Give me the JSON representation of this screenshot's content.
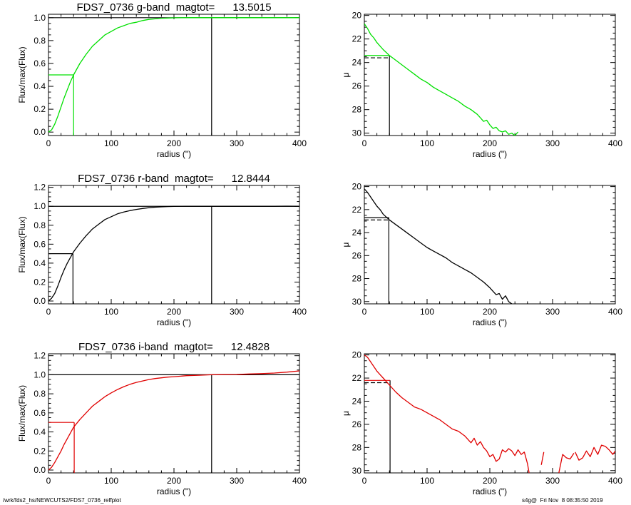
{
  "footer": {
    "left": "/wrk/fds2_hs/NEWCUTS2/FDS7_0736_reffplot",
    "right": "s4g@  Fri Nov  8 08:35:50 2019"
  },
  "chart_data": [
    {
      "type": "line",
      "band": "g",
      "title": "FDS7_0736 g-band  magtot=      13.5015",
      "xlabel": "radius (\")",
      "ylabel": "Flux/max(Flux)",
      "xlim": [
        0,
        400
      ],
      "ylim": [
        -0.03,
        1.03
      ],
      "xticks": [
        0,
        100,
        200,
        300,
        400
      ],
      "yticks": [
        0.0,
        0.2,
        0.4,
        0.6,
        0.8,
        1.0
      ],
      "color": "#00e000",
      "series": [
        {
          "x": [
            0,
            5,
            10,
            15,
            20,
            25,
            30,
            35,
            40,
            50,
            60,
            70,
            80,
            90,
            100,
            110,
            120,
            130,
            140,
            150,
            160,
            170,
            180,
            190,
            200,
            220,
            240,
            260,
            280,
            300,
            320,
            340,
            360,
            380,
            400
          ],
          "values": [
            0.0,
            0.02,
            0.07,
            0.14,
            0.22,
            0.3,
            0.37,
            0.44,
            0.5,
            0.6,
            0.68,
            0.75,
            0.8,
            0.85,
            0.88,
            0.91,
            0.93,
            0.95,
            0.96,
            0.975,
            0.985,
            0.99,
            0.995,
            0.997,
            0.999,
            1.0,
            1.0,
            1.0,
            1.0,
            1.0,
            1.0,
            1.0,
            1.0,
            1.0,
            1.0
          ]
        }
      ],
      "half_light_radius": 40,
      "half_level": 0.5,
      "total_radius": 260,
      "total_level": 1.0
    },
    {
      "type": "line",
      "band": "g",
      "title": "",
      "xlabel": "radius (\")",
      "ylabel": "μ",
      "xlim": [
        0,
        400
      ],
      "ylim": [
        30.2,
        19.9
      ],
      "xticks": [
        0,
        100,
        200,
        300,
        400
      ],
      "yticks": [
        20,
        22,
        24,
        26,
        28,
        30
      ],
      "color": "#00e000",
      "series": [
        {
          "x": [
            0,
            5,
            10,
            15,
            20,
            25,
            30,
            40,
            50,
            60,
            70,
            80,
            90,
            100,
            110,
            120,
            130,
            140,
            150,
            160,
            170,
            180,
            185,
            190,
            195,
            200,
            205,
            210,
            215,
            220,
            225,
            230,
            235,
            240,
            245
          ],
          "values": [
            20.7,
            21.1,
            21.6,
            21.9,
            22.3,
            22.6,
            22.9,
            23.4,
            23.8,
            24.2,
            24.6,
            25.0,
            25.4,
            25.7,
            26.1,
            26.4,
            26.7,
            27.0,
            27.3,
            27.7,
            28.0,
            28.4,
            28.7,
            29.0,
            28.9,
            29.3,
            29.6,
            29.5,
            29.8,
            29.9,
            29.8,
            30.1,
            30.0,
            30.2,
            29.9
          ]
        }
      ],
      "half_light_radius": 40,
      "mu_markers": [
        23.4,
        23.6
      ]
    },
    {
      "type": "line",
      "band": "r",
      "title": "FDS7_0736 r-band  magtot=      12.8444",
      "xlabel": "radius (\")",
      "ylabel": "Flux/max(Flux)",
      "xlim": [
        0,
        400
      ],
      "ylim": [
        -0.03,
        1.22
      ],
      "xticks": [
        0,
        100,
        200,
        300,
        400
      ],
      "yticks": [
        0.0,
        0.2,
        0.4,
        0.6,
        0.8,
        1.0,
        1.2
      ],
      "color": "#000000",
      "series": [
        {
          "x": [
            0,
            5,
            10,
            15,
            20,
            25,
            30,
            35,
            40,
            50,
            60,
            70,
            80,
            90,
            100,
            110,
            120,
            130,
            140,
            150,
            160,
            170,
            180,
            190,
            200,
            220,
            240,
            260,
            280,
            300,
            320,
            340,
            360,
            380,
            400
          ],
          "values": [
            0.0,
            0.03,
            0.08,
            0.16,
            0.25,
            0.33,
            0.4,
            0.46,
            0.52,
            0.61,
            0.69,
            0.76,
            0.81,
            0.86,
            0.89,
            0.92,
            0.94,
            0.955,
            0.967,
            0.977,
            0.985,
            0.99,
            0.994,
            0.997,
            0.999,
            1.0,
            1.0,
            1.0,
            1.0,
            1.0,
            1.0,
            1.0,
            1.0,
            1.002,
            1.0
          ]
        }
      ],
      "half_light_radius": 39,
      "half_level": 0.5,
      "total_radius": 260,
      "total_level": 1.0
    },
    {
      "type": "line",
      "band": "r",
      "title": "",
      "xlabel": "radius (\")",
      "ylabel": "μ",
      "xlim": [
        0,
        400
      ],
      "ylim": [
        30.2,
        19.9
      ],
      "xticks": [
        0,
        100,
        200,
        300,
        400
      ],
      "yticks": [
        20,
        22,
        24,
        26,
        28,
        30
      ],
      "color": "#000000",
      "series": [
        {
          "x": [
            0,
            5,
            10,
            15,
            20,
            25,
            30,
            40,
            50,
            60,
            70,
            80,
            90,
            100,
            110,
            120,
            130,
            140,
            150,
            160,
            170,
            180,
            190,
            200,
            205,
            210,
            215,
            220,
            225,
            230,
            235
          ],
          "values": [
            20.2,
            20.5,
            20.9,
            21.3,
            21.7,
            22.0,
            22.4,
            22.9,
            23.3,
            23.7,
            24.1,
            24.5,
            24.9,
            25.3,
            25.6,
            25.9,
            26.2,
            26.6,
            26.9,
            27.2,
            27.5,
            27.9,
            28.3,
            28.8,
            29.1,
            29.4,
            29.3,
            29.8,
            29.5,
            30.0,
            30.2
          ]
        }
      ],
      "half_light_radius": 39,
      "mu_markers": [
        22.7,
        22.9
      ]
    },
    {
      "type": "line",
      "band": "i",
      "title": "FDS7_0736 i-band  magtot=      12.4828",
      "xlabel": "radius (\")",
      "ylabel": "Flux/max(Flux)",
      "xlim": [
        0,
        400
      ],
      "ylim": [
        -0.03,
        1.22
      ],
      "xticks": [
        0,
        100,
        200,
        300,
        400
      ],
      "yticks": [
        0.0,
        0.2,
        0.4,
        0.6,
        0.8,
        1.0,
        1.2
      ],
      "color": "#e00000",
      "series": [
        {
          "x": [
            0,
            5,
            10,
            15,
            20,
            25,
            30,
            35,
            40,
            50,
            60,
            70,
            80,
            90,
            100,
            110,
            120,
            130,
            140,
            150,
            160,
            170,
            180,
            190,
            200,
            220,
            240,
            260,
            280,
            300,
            320,
            340,
            360,
            380,
            400
          ],
          "values": [
            0.0,
            0.03,
            0.08,
            0.14,
            0.2,
            0.27,
            0.33,
            0.39,
            0.45,
            0.53,
            0.6,
            0.67,
            0.72,
            0.77,
            0.81,
            0.845,
            0.875,
            0.9,
            0.92,
            0.935,
            0.95,
            0.96,
            0.968,
            0.975,
            0.98,
            0.99,
            0.995,
            1.0,
            1.002,
            1.003,
            1.008,
            1.012,
            1.018,
            1.028,
            1.04
          ]
        }
      ],
      "half_light_radius": 41,
      "half_level": 0.5,
      "total_radius": 260,
      "total_level": 1.0
    },
    {
      "type": "line",
      "band": "i",
      "title": "",
      "xlabel": "radius (\")",
      "ylabel": "μ",
      "xlim": [
        0,
        400
      ],
      "ylim": [
        30.2,
        19.9
      ],
      "xticks": [
        0,
        100,
        200,
        300,
        400
      ],
      "yticks": [
        20,
        22,
        24,
        26,
        28,
        30
      ],
      "color": "#e00000",
      "series": [
        {
          "x": [
            0,
            5,
            10,
            15,
            20,
            25,
            30,
            40,
            50,
            60,
            70,
            80,
            90,
            100,
            110,
            120,
            130,
            140,
            150,
            160,
            170,
            175,
            180,
            185,
            190,
            195,
            200,
            205,
            210,
            215,
            220,
            225,
            230,
            235,
            240,
            245,
            250,
            255,
            260,
            263
          ],
          "values": [
            20.0,
            20.2,
            20.6,
            21.0,
            21.4,
            21.7,
            22.0,
            22.6,
            23.2,
            23.7,
            24.1,
            24.5,
            24.7,
            25.0,
            25.3,
            25.6,
            26.0,
            26.4,
            26.6,
            27.0,
            27.6,
            27.2,
            27.8,
            27.5,
            28.0,
            28.3,
            28.8,
            28.6,
            29.2,
            29.0,
            28.2,
            28.4,
            28.1,
            28.3,
            28.7,
            28.2,
            28.6,
            28.4,
            29.4,
            30.3
          ]
        },
        {
          "x": [
            282,
            286
          ],
          "values": [
            29.5,
            28.4
          ]
        },
        {
          "x": [
            310,
            316,
            322,
            328,
            334
          ],
          "values": [
            30.2,
            28.6,
            28.9,
            29.0,
            28.5
          ]
        },
        {
          "x": [
            336,
            342,
            348,
            354,
            360,
            366,
            372,
            378,
            384,
            390,
            396,
            400
          ],
          "values": [
            28.4,
            29.1,
            28.9,
            28.3,
            28.8,
            28.0,
            28.6,
            27.8,
            27.9,
            28.2,
            28.6,
            28.3
          ]
        }
      ],
      "half_light_radius": 41,
      "mu_markers": [
        22.2,
        22.4
      ]
    }
  ]
}
